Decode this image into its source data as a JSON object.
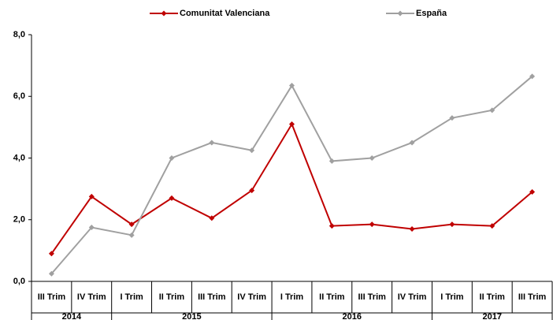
{
  "chart_data": {
    "type": "line",
    "groups": [
      {
        "name": "2014",
        "categories": [
          "III Trim",
          "IV Trim"
        ]
      },
      {
        "name": "2015",
        "categories": [
          "I Trim",
          "II Trim",
          "III Trim",
          "IV Trim"
        ]
      },
      {
        "name": "2016",
        "categories": [
          "I Trim",
          "II Trim",
          "III Trim",
          "IV Trim"
        ]
      },
      {
        "name": "2017",
        "categories": [
          "I Trim",
          "II Trim",
          "III Trim"
        ]
      }
    ],
    "series": [
      {
        "name": "Comunitat Valenciana",
        "color": "#c00000",
        "marker": "diamond",
        "values": [
          0.9,
          2.75,
          1.85,
          2.7,
          2.05,
          2.95,
          5.1,
          1.8,
          1.85,
          1.7,
          1.85,
          1.8,
          2.9
        ]
      },
      {
        "name": "España",
        "color": "#a0a0a0",
        "marker": "diamond",
        "values": [
          0.25,
          1.75,
          1.5,
          4.0,
          4.5,
          4.25,
          6.35,
          3.9,
          4.0,
          4.5,
          5.3,
          5.55,
          6.65
        ]
      }
    ],
    "ylim": [
      0,
      8
    ],
    "yticks": [
      {
        "value": 0,
        "label": "0,0"
      },
      {
        "value": 2,
        "label": "2,0"
      },
      {
        "value": 4,
        "label": "4,0"
      },
      {
        "value": 6,
        "label": "6,0"
      },
      {
        "value": 8,
        "label": "8,0"
      }
    ],
    "grid": false,
    "legend": "top"
  }
}
